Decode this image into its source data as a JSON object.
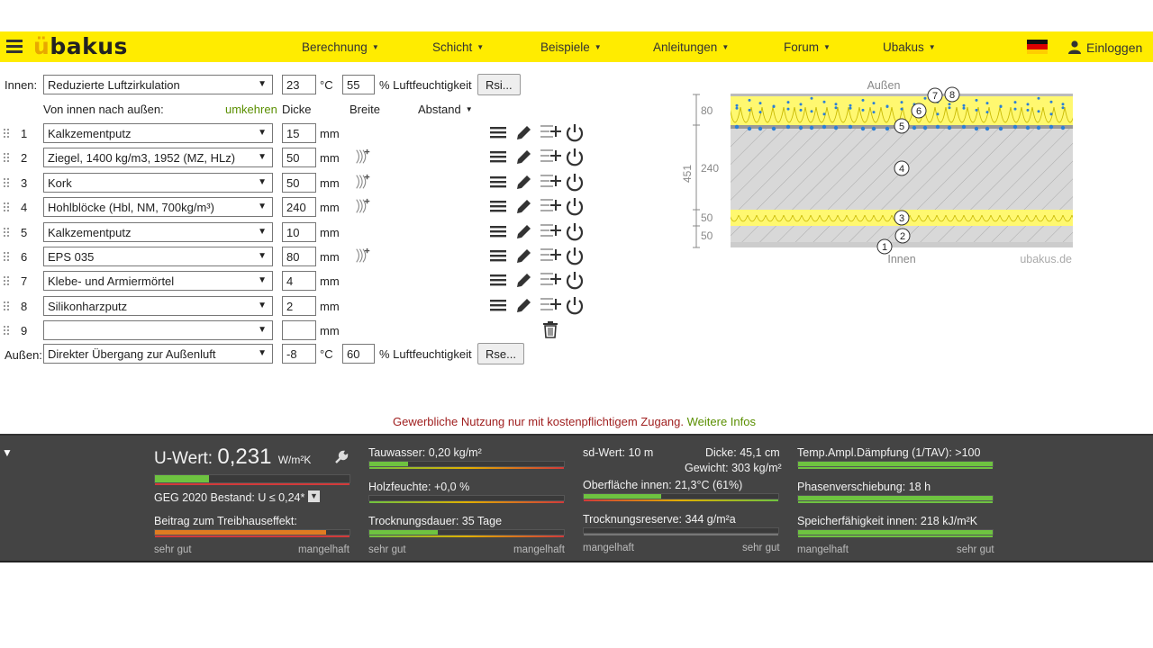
{
  "nav": {
    "logo": "ubakus",
    "items": [
      "Berechnung",
      "Schicht",
      "Beispiele",
      "Anleitungen",
      "Forum",
      "Ubakus"
    ],
    "login": "Einloggen"
  },
  "inner": {
    "label": "Innen:",
    "condition": "Reduzierte Luftzirkulation",
    "temp": "23",
    "temp_unit": "°C",
    "humidity": "55",
    "humidity_label": "% Luftfeuchtigkeit",
    "button": "Rsi..."
  },
  "header": {
    "direction": "Von innen nach außen:",
    "reverse": "umkehren",
    "thickness": "Dicke",
    "width": "Breite",
    "distance": "Abstand"
  },
  "layers": [
    {
      "num": "1",
      "material": "Kalkzementputz",
      "thickness": "15",
      "unit": "mm",
      "has_width": false
    },
    {
      "num": "2",
      "material": "Ziegel, 1400 kg/m3, 1952 (MZ, HLz)",
      "thickness": "50",
      "unit": "mm",
      "has_width": true
    },
    {
      "num": "3",
      "material": "Kork",
      "thickness": "50",
      "unit": "mm",
      "has_width": true
    },
    {
      "num": "4",
      "material": "Hohlblöcke (Hbl, NM,  700kg/m³)",
      "thickness": "240",
      "unit": "mm",
      "has_width": true
    },
    {
      "num": "5",
      "material": "Kalkzementputz",
      "thickness": "10",
      "unit": "mm",
      "has_width": false
    },
    {
      "num": "6",
      "material": "EPS 035",
      "thickness": "80",
      "unit": "mm",
      "has_width": true
    },
    {
      "num": "7",
      "material": "Klebe- und Armiermörtel",
      "thickness": "4",
      "unit": "mm",
      "has_width": false
    },
    {
      "num": "8",
      "material": "Silikonharzputz",
      "thickness": "2",
      "unit": "mm",
      "has_width": false
    },
    {
      "num": "9",
      "material": "",
      "thickness": "",
      "unit": "mm",
      "has_width": false
    }
  ],
  "outer": {
    "label": "Außen:",
    "condition": "Direkter Übergang zur Außenluft",
    "temp": "-8",
    "temp_unit": "°C",
    "humidity": "60",
    "humidity_label": "% Luftfeuchtigkeit",
    "button": "Rse..."
  },
  "diagram": {
    "outside": "Außen",
    "inside": "Innen",
    "watermark": "ubakus.de",
    "total": "451",
    "dims": [
      "80",
      "240",
      "50",
      "50"
    ],
    "markers": [
      "1",
      "2",
      "3",
      "4",
      "5",
      "6",
      "7",
      "8"
    ]
  },
  "notice": {
    "text": "Gewerbliche Nutzung nur mit kostenpflichtigem Zugang.",
    "more": "Weitere Infos"
  },
  "results": {
    "u_label": "U-Wert:",
    "u_value": "0,231",
    "u_unit": "W/m²K",
    "geg": "GEG 2020 Bestand: U ≤ 0,24*",
    "greenhouse": "Beitrag zum Treibhauseffekt:",
    "tauwasser": "Tauwasser: 0,20 kg/m²",
    "holzfeuchte": "Holzfeuchte: +0,0 %",
    "trocknungsdauer": "Trocknungsdauer: 35 Tage",
    "sd": "sd-Wert: 10 m",
    "dicke": "Dicke: 45,1 cm",
    "gewicht": "Gewicht: 303 kg/m²",
    "oberflaeche": "Oberfläche innen: 21,3°C (61%)",
    "trocknungsreserve": "Trocknungsreserve: 344 g/m²a",
    "tav": "Temp.Ampl.Dämpfung (1/TAV): >100",
    "phase": "Phasenverschiebung: 18 h",
    "speicher": "Speicherfähigkeit innen: 218 kJ/m²K",
    "scale_good": "sehr gut",
    "scale_bad": "mangelhaft",
    "levels": {
      "u": 0.28,
      "greenhouse": 0.88,
      "tauwasser": 0.2,
      "holzfeuchte": 0.0,
      "trocknungsdauer": 0.35,
      "oberflaeche": 0.4,
      "trocknungsreserve": 0.0,
      "tav": 1.0,
      "phase": 1.0,
      "speicher": 1.0
    }
  },
  "colors": {
    "brand_yellow": "#ffec00",
    "bar_green": "#6ec340",
    "bar_orange": "#e07b20",
    "warning_red": "#a02020",
    "link_green": "#5a8f00"
  }
}
